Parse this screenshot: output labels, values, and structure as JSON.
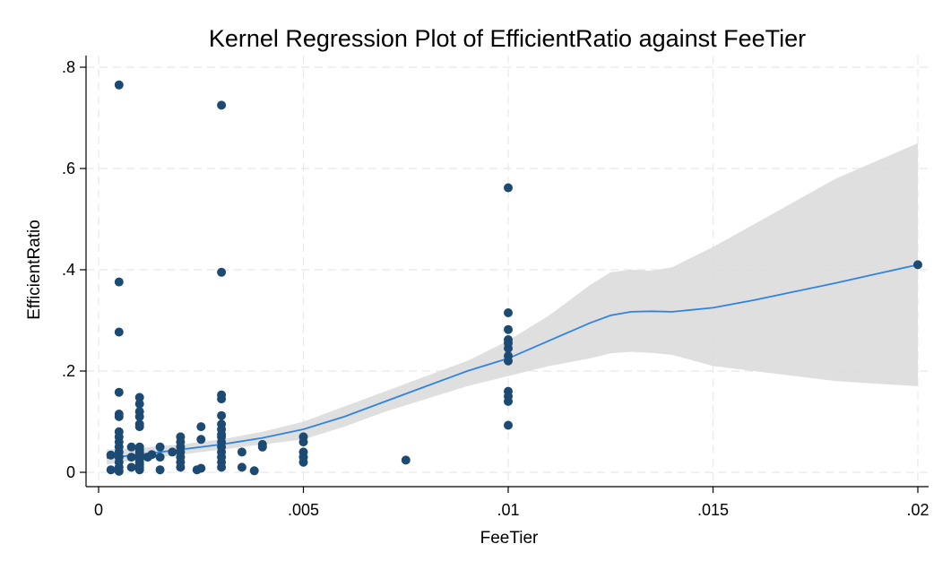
{
  "chart_data": {
    "type": "scatter",
    "title": "Kernel Regression Plot of EfficientRatio against FeeTier",
    "xlabel": "FeeTier",
    "ylabel": "EfficientRatio",
    "xlim": [
      0,
      0.02
    ],
    "ylim": [
      0,
      0.8
    ],
    "xticks": [
      0,
      0.005,
      0.01,
      0.015,
      0.02
    ],
    "xtick_labels": [
      "0",
      ".005",
      ".01",
      ".015",
      ".02"
    ],
    "yticks": [
      0,
      0.2,
      0.4,
      0.6,
      0.8
    ],
    "ytick_labels": [
      "0",
      ".2",
      ".4",
      ".6",
      ".8"
    ],
    "grid": true,
    "legend": "none",
    "colors": {
      "points": "#1c4a72",
      "fit_line": "#2f84e0",
      "confidence_band": "#d9d9d9"
    },
    "points": [
      [
        0.0003,
        0.034
      ],
      [
        0.0003,
        0.005
      ],
      [
        0.0005,
        0.765
      ],
      [
        0.0005,
        0.376
      ],
      [
        0.0005,
        0.277
      ],
      [
        0.0005,
        0.158
      ],
      [
        0.0005,
        0.115
      ],
      [
        0.0005,
        0.11
      ],
      [
        0.0005,
        0.08
      ],
      [
        0.0005,
        0.07
      ],
      [
        0.0005,
        0.06
      ],
      [
        0.0005,
        0.05
      ],
      [
        0.0005,
        0.04
      ],
      [
        0.0005,
        0.03
      ],
      [
        0.0005,
        0.02
      ],
      [
        0.0005,
        0.01
      ],
      [
        0.0005,
        0.002
      ],
      [
        0.0008,
        0.05
      ],
      [
        0.0008,
        0.03
      ],
      [
        0.0008,
        0.01
      ],
      [
        0.001,
        0.148
      ],
      [
        0.001,
        0.135
      ],
      [
        0.001,
        0.12
      ],
      [
        0.001,
        0.11
      ],
      [
        0.001,
        0.095
      ],
      [
        0.001,
        0.09
      ],
      [
        0.001,
        0.05
      ],
      [
        0.001,
        0.045
      ],
      [
        0.001,
        0.04
      ],
      [
        0.001,
        0.035
      ],
      [
        0.001,
        0.03
      ],
      [
        0.001,
        0.025
      ],
      [
        0.001,
        0.02
      ],
      [
        0.001,
        0.015
      ],
      [
        0.001,
        0.01
      ],
      [
        0.001,
        0.005
      ],
      [
        0.0012,
        0.03
      ],
      [
        0.0013,
        0.035
      ],
      [
        0.0015,
        0.05
      ],
      [
        0.0015,
        0.03
      ],
      [
        0.0015,
        0.005
      ],
      [
        0.0018,
        0.04
      ],
      [
        0.002,
        0.07
      ],
      [
        0.002,
        0.06
      ],
      [
        0.002,
        0.05
      ],
      [
        0.002,
        0.04
      ],
      [
        0.002,
        0.03
      ],
      [
        0.002,
        0.02
      ],
      [
        0.002,
        0.01
      ],
      [
        0.0024,
        0.005
      ],
      [
        0.0025,
        0.09
      ],
      [
        0.0025,
        0.065
      ],
      [
        0.0025,
        0.008
      ],
      [
        0.003,
        0.725
      ],
      [
        0.003,
        0.395
      ],
      [
        0.003,
        0.153
      ],
      [
        0.003,
        0.145
      ],
      [
        0.003,
        0.112
      ],
      [
        0.003,
        0.095
      ],
      [
        0.003,
        0.085
      ],
      [
        0.003,
        0.075
      ],
      [
        0.003,
        0.07
      ],
      [
        0.003,
        0.06
      ],
      [
        0.003,
        0.05
      ],
      [
        0.003,
        0.04
      ],
      [
        0.003,
        0.03
      ],
      [
        0.003,
        0.02
      ],
      [
        0.003,
        0.01
      ],
      [
        0.0035,
        0.04
      ],
      [
        0.0035,
        0.01
      ],
      [
        0.0038,
        0.003
      ],
      [
        0.004,
        0.055
      ],
      [
        0.004,
        0.05
      ],
      [
        0.005,
        0.07
      ],
      [
        0.005,
        0.06
      ],
      [
        0.005,
        0.04
      ],
      [
        0.005,
        0.03
      ],
      [
        0.005,
        0.02
      ],
      [
        0.0075,
        0.024
      ],
      [
        0.01,
        0.562
      ],
      [
        0.01,
        0.315
      ],
      [
        0.01,
        0.282
      ],
      [
        0.01,
        0.262
      ],
      [
        0.01,
        0.255
      ],
      [
        0.01,
        0.245
      ],
      [
        0.01,
        0.23
      ],
      [
        0.01,
        0.22
      ],
      [
        0.01,
        0.16
      ],
      [
        0.01,
        0.15
      ],
      [
        0.01,
        0.14
      ],
      [
        0.01,
        0.093
      ],
      [
        0.02,
        0.41
      ]
    ],
    "fit_line": {
      "x": [
        0.0002,
        0.001,
        0.002,
        0.003,
        0.004,
        0.005,
        0.006,
        0.007,
        0.008,
        0.009,
        0.01,
        0.011,
        0.012,
        0.0125,
        0.013,
        0.0135,
        0.014,
        0.015,
        0.016,
        0.017,
        0.018,
        0.019,
        0.02
      ],
      "y": [
        0.028,
        0.035,
        0.045,
        0.055,
        0.068,
        0.085,
        0.11,
        0.14,
        0.17,
        0.2,
        0.225,
        0.26,
        0.295,
        0.31,
        0.317,
        0.318,
        0.317,
        0.325,
        0.34,
        0.357,
        0.374,
        0.392,
        0.41
      ]
    },
    "confidence_band": {
      "x": [
        0.0002,
        0.001,
        0.002,
        0.003,
        0.004,
        0.005,
        0.006,
        0.007,
        0.008,
        0.009,
        0.01,
        0.011,
        0.012,
        0.0125,
        0.013,
        0.0135,
        0.014,
        0.015,
        0.016,
        0.017,
        0.018,
        0.019,
        0.02
      ],
      "lower": [
        0.015,
        0.025,
        0.035,
        0.045,
        0.055,
        0.065,
        0.09,
        0.12,
        0.145,
        0.17,
        0.19,
        0.21,
        0.225,
        0.235,
        0.238,
        0.236,
        0.232,
        0.21,
        0.2,
        0.19,
        0.18,
        0.175,
        0.17
      ],
      "upper": [
        0.045,
        0.048,
        0.055,
        0.065,
        0.08,
        0.1,
        0.13,
        0.16,
        0.19,
        0.22,
        0.26,
        0.31,
        0.37,
        0.395,
        0.4,
        0.398,
        0.405,
        0.445,
        0.49,
        0.535,
        0.58,
        0.615,
        0.65
      ]
    }
  }
}
